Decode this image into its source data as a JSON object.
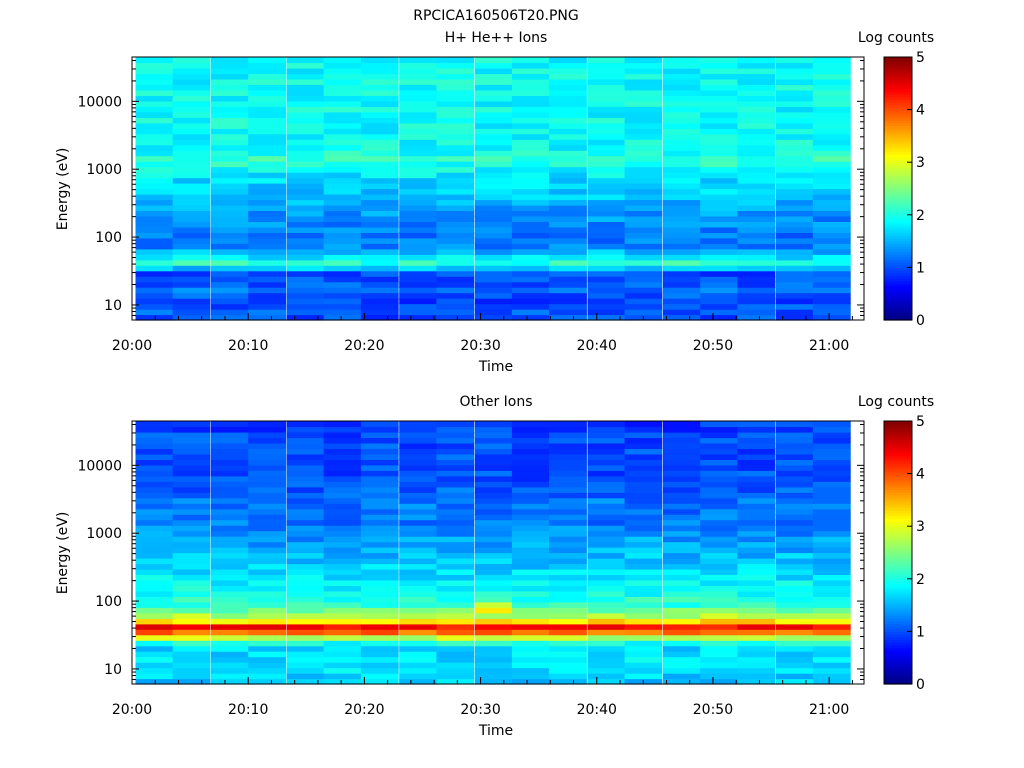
{
  "page_title": "RPCICA160506T20.PNG",
  "chart_data": [
    {
      "type": "heatmap",
      "title": "H+ He++ Ions",
      "xlabel": "Time",
      "ylabel": "Energy (eV)",
      "y_scale": "log",
      "ylim": [
        6,
        45000
      ],
      "xlim": [
        "20:00",
        "21:03"
      ],
      "x_ticks": [
        "20:00",
        "20:10",
        "20:20",
        "20:30",
        "20:40",
        "20:50",
        "21:00"
      ],
      "y_ticks": [
        "10",
        "100",
        "1000",
        "10000"
      ],
      "colorbar": {
        "label": "Log counts",
        "range": [
          0,
          5
        ],
        "ticks": [
          "0",
          "1",
          "2",
          "3",
          "4",
          "5"
        ],
        "colormap": "jet"
      },
      "time_columns": [
        "20:01.9",
        "20:05.1",
        "20:08.4",
        "20:11.6",
        "20:14.9",
        "20:18.1",
        "20:21.3",
        "20:24.6",
        "20:27.8",
        "20:31.1",
        "20:34.3",
        "20:37.5",
        "20:40.8",
        "20:44.0",
        "20:47.3",
        "20:50.5",
        "20:53.7",
        "20:57.0",
        "21:00.2"
      ],
      "profile": {
        "energy_eV": [
          7,
          9,
          12,
          16,
          22,
          30,
          36,
          42,
          48,
          55,
          70,
          100,
          150,
          250,
          400,
          700,
          1000,
          1400,
          2000,
          3000,
          5000,
          8000,
          12000,
          20000,
          40000
        ],
        "log_counts": [
          1.0,
          1.1,
          0.9,
          1.2,
          1.0,
          1.0,
          1.7,
          2.1,
          1.8,
          1.7,
          1.3,
          1.2,
          1.3,
          1.4,
          1.6,
          1.7,
          1.9,
          2.1,
          1.9,
          1.9,
          1.9,
          1.9,
          1.9,
          1.9,
          1.9
        ]
      },
      "notes": "Band near 40 eV and enhancement near 1400 eV"
    },
    {
      "type": "heatmap",
      "title": "Other Ions",
      "xlabel": "Time",
      "ylabel": "Energy (eV)",
      "y_scale": "log",
      "ylim": [
        6,
        45000
      ],
      "xlim": [
        "20:00",
        "21:03"
      ],
      "x_ticks": [
        "20:00",
        "20:10",
        "20:20",
        "20:30",
        "20:40",
        "20:50",
        "21:00"
      ],
      "y_ticks": [
        "10",
        "100",
        "1000",
        "10000"
      ],
      "colorbar": {
        "label": "Log counts",
        "range": [
          0,
          5
        ],
        "ticks": [
          "0",
          "1",
          "2",
          "3",
          "4",
          "5"
        ],
        "colormap": "jet"
      },
      "time_columns": [
        "20:01.9",
        "20:05.1",
        "20:08.4",
        "20:11.6",
        "20:14.9",
        "20:18.1",
        "20:21.3",
        "20:24.6",
        "20:27.8",
        "20:31.1",
        "20:34.3",
        "20:37.5",
        "20:40.8",
        "20:44.0",
        "20:47.3",
        "20:50.5",
        "20:53.7",
        "20:57.0",
        "21:00.2"
      ],
      "profile": {
        "energy_eV": [
          7,
          9,
          12,
          16,
          22,
          27,
          32,
          38,
          44,
          50,
          58,
          70,
          90,
          120,
          200,
          400,
          800,
          1500,
          3000,
          6000,
          12000,
          25000,
          40000
        ],
        "log_counts": [
          1.6,
          1.7,
          1.8,
          1.7,
          1.7,
          2.3,
          3.4,
          4.3,
          4.4,
          3.3,
          2.8,
          2.5,
          2.1,
          2.0,
          1.8,
          1.6,
          1.4,
          1.2,
          1.2,
          1.0,
          1.0,
          1.0,
          0.9
        ]
      },
      "notes": "Strong band near 40 eV; enhancement near 85 eV around 20:31"
    }
  ]
}
